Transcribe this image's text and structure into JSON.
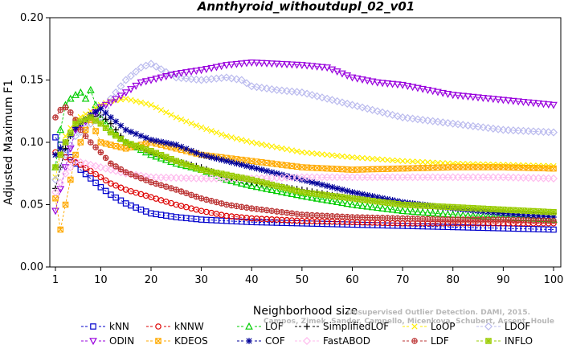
{
  "chart_data": {
    "type": "line",
    "title": "Annthyroid_withoutdupl_02_v01",
    "xlabel": "Neighborhood size",
    "ylabel": "Adjusted Maximum F1",
    "xlim": [
      1,
      100
    ],
    "ylim": [
      0,
      0.2
    ],
    "xticks": [
      1,
      10,
      20,
      30,
      40,
      50,
      60,
      70,
      80,
      90,
      100
    ],
    "yticks": [
      0.0,
      0.05,
      0.1,
      0.15,
      0.2
    ],
    "ytick_labels": [
      "0.00",
      "0.05",
      "0.10",
      "0.15",
      "0.20"
    ],
    "grid": false,
    "legend_position": "bottom",
    "watermark": [
      "Unsupervised Outlier Detection. DAMI, 2015.",
      "Campos, Zimek, Sander, Campello, Micenkova, Schubert, Assent, Houle"
    ],
    "series": [
      {
        "name": "kNN",
        "color": "#0000cc",
        "marker": "square",
        "points": [
          [
            1,
            0.104
          ],
          [
            2,
            0.098
          ],
          [
            3,
            0.092
          ],
          [
            4,
            0.088
          ],
          [
            5,
            0.083
          ],
          [
            6,
            0.078
          ],
          [
            8,
            0.071
          ],
          [
            10,
            0.064
          ],
          [
            12,
            0.058
          ],
          [
            15,
            0.051
          ],
          [
            18,
            0.046
          ],
          [
            20,
            0.043
          ],
          [
            25,
            0.04
          ],
          [
            30,
            0.038
          ],
          [
            40,
            0.036
          ],
          [
            50,
            0.035
          ],
          [
            60,
            0.034
          ],
          [
            70,
            0.033
          ],
          [
            80,
            0.032
          ],
          [
            90,
            0.031
          ],
          [
            100,
            0.03
          ]
        ]
      },
      {
        "name": "kNNW",
        "color": "#dd0000",
        "marker": "circle",
        "points": [
          [
            1,
            0.092
          ],
          [
            2,
            0.09
          ],
          [
            3,
            0.088
          ],
          [
            4,
            0.086
          ],
          [
            6,
            0.082
          ],
          [
            8,
            0.077
          ],
          [
            10,
            0.072
          ],
          [
            12,
            0.067
          ],
          [
            15,
            0.062
          ],
          [
            20,
            0.056
          ],
          [
            25,
            0.05
          ],
          [
            30,
            0.045
          ],
          [
            35,
            0.041
          ],
          [
            40,
            0.039
          ],
          [
            50,
            0.037
          ],
          [
            60,
            0.036
          ],
          [
            70,
            0.035
          ],
          [
            80,
            0.035
          ],
          [
            90,
            0.035
          ],
          [
            100,
            0.035
          ]
        ]
      },
      {
        "name": "LOF",
        "color": "#00cc00",
        "marker": "triangle-up",
        "points": [
          [
            1,
            0.08
          ],
          [
            2,
            0.11
          ],
          [
            3,
            0.13
          ],
          [
            4,
            0.135
          ],
          [
            5,
            0.138
          ],
          [
            6,
            0.14
          ],
          [
            7,
            0.135
          ],
          [
            8,
            0.142
          ],
          [
            9,
            0.13
          ],
          [
            10,
            0.12
          ],
          [
            12,
            0.11
          ],
          [
            15,
            0.1
          ],
          [
            20,
            0.09
          ],
          [
            25,
            0.083
          ],
          [
            30,
            0.078
          ],
          [
            35,
            0.07
          ],
          [
            40,
            0.065
          ],
          [
            50,
            0.057
          ],
          [
            60,
            0.05
          ],
          [
            70,
            0.045
          ],
          [
            80,
            0.042
          ],
          [
            90,
            0.04
          ],
          [
            100,
            0.038
          ]
        ]
      },
      {
        "name": "SimplifiedLOF",
        "color": "#000000",
        "marker": "plus",
        "points": [
          [
            1,
            0.063
          ],
          [
            2,
            0.08
          ],
          [
            3,
            0.095
          ],
          [
            4,
            0.105
          ],
          [
            5,
            0.11
          ],
          [
            6,
            0.115
          ],
          [
            7,
            0.118
          ],
          [
            8,
            0.12
          ],
          [
            10,
            0.122
          ],
          [
            12,
            0.115
          ],
          [
            15,
            0.1
          ],
          [
            20,
            0.092
          ],
          [
            25,
            0.085
          ],
          [
            30,
            0.08
          ],
          [
            35,
            0.072
          ],
          [
            40,
            0.068
          ],
          [
            50,
            0.062
          ],
          [
            60,
            0.055
          ],
          [
            70,
            0.05
          ],
          [
            80,
            0.047
          ],
          [
            90,
            0.045
          ],
          [
            100,
            0.043
          ]
        ]
      },
      {
        "name": "LoOP",
        "color": "#ffee00",
        "marker": "x",
        "points": [
          [
            1,
            0.072
          ],
          [
            2,
            0.09
          ],
          [
            3,
            0.105
          ],
          [
            5,
            0.118
          ],
          [
            8,
            0.125
          ],
          [
            10,
            0.13
          ],
          [
            12,
            0.133
          ],
          [
            15,
            0.135
          ],
          [
            18,
            0.132
          ],
          [
            20,
            0.13
          ],
          [
            25,
            0.12
          ],
          [
            30,
            0.112
          ],
          [
            35,
            0.105
          ],
          [
            40,
            0.1
          ],
          [
            50,
            0.092
          ],
          [
            60,
            0.088
          ],
          [
            70,
            0.085
          ],
          [
            80,
            0.083
          ],
          [
            90,
            0.082
          ],
          [
            100,
            0.081
          ]
        ]
      },
      {
        "name": "LDOF",
        "color": "#bbbbee",
        "marker": "diamond",
        "points": [
          [
            1,
            0.07
          ],
          [
            3,
            0.09
          ],
          [
            5,
            0.105
          ],
          [
            8,
            0.115
          ],
          [
            10,
            0.12
          ],
          [
            12,
            0.135
          ],
          [
            15,
            0.15
          ],
          [
            18,
            0.16
          ],
          [
            20,
            0.163
          ],
          [
            25,
            0.152
          ],
          [
            30,
            0.15
          ],
          [
            35,
            0.152
          ],
          [
            38,
            0.15
          ],
          [
            40,
            0.145
          ],
          [
            45,
            0.142
          ],
          [
            50,
            0.14
          ],
          [
            55,
            0.135
          ],
          [
            60,
            0.13
          ],
          [
            70,
            0.12
          ],
          [
            80,
            0.115
          ],
          [
            90,
            0.11
          ],
          [
            100,
            0.108
          ]
        ]
      },
      {
        "name": "ODIN",
        "color": "#9900dd",
        "marker": "triangle-down",
        "points": [
          [
            1,
            0.045
          ],
          [
            3,
            0.08
          ],
          [
            5,
            0.11
          ],
          [
            8,
            0.12
          ],
          [
            10,
            0.128
          ],
          [
            12,
            0.132
          ],
          [
            15,
            0.14
          ],
          [
            18,
            0.148
          ],
          [
            20,
            0.15
          ],
          [
            25,
            0.155
          ],
          [
            30,
            0.158
          ],
          [
            35,
            0.162
          ],
          [
            40,
            0.164
          ],
          [
            45,
            0.163
          ],
          [
            50,
            0.162
          ],
          [
            55,
            0.16
          ],
          [
            60,
            0.152
          ],
          [
            65,
            0.148
          ],
          [
            70,
            0.146
          ],
          [
            75,
            0.142
          ],
          [
            80,
            0.138
          ],
          [
            85,
            0.136
          ],
          [
            90,
            0.134
          ],
          [
            95,
            0.132
          ],
          [
            100,
            0.13
          ]
        ]
      },
      {
        "name": "KDEOS",
        "color": "#ffaa00",
        "marker": "square-x",
        "points": [
          [
            1,
            0.055
          ],
          [
            2,
            0.03
          ],
          [
            3,
            0.05
          ],
          [
            4,
            0.07
          ],
          [
            5,
            0.09
          ],
          [
            6,
            0.1
          ],
          [
            7,
            0.11
          ],
          [
            8,
            0.118
          ],
          [
            10,
            0.1
          ],
          [
            15,
            0.095
          ],
          [
            20,
            0.1
          ],
          [
            25,
            0.095
          ],
          [
            30,
            0.09
          ],
          [
            40,
            0.085
          ],
          [
            50,
            0.08
          ],
          [
            60,
            0.078
          ],
          [
            70,
            0.079
          ],
          [
            80,
            0.08
          ],
          [
            90,
            0.08
          ],
          [
            100,
            0.079
          ]
        ]
      },
      {
        "name": "COF",
        "color": "#000099",
        "marker": "star",
        "points": [
          [
            1,
            0.09
          ],
          [
            3,
            0.1
          ],
          [
            5,
            0.112
          ],
          [
            8,
            0.122
          ],
          [
            10,
            0.127
          ],
          [
            12,
            0.12
          ],
          [
            15,
            0.11
          ],
          [
            20,
            0.102
          ],
          [
            25,
            0.098
          ],
          [
            30,
            0.09
          ],
          [
            35,
            0.085
          ],
          [
            40,
            0.08
          ],
          [
            45,
            0.075
          ],
          [
            50,
            0.07
          ],
          [
            55,
            0.065
          ],
          [
            60,
            0.06
          ],
          [
            70,
            0.052
          ],
          [
            80,
            0.047
          ],
          [
            90,
            0.043
          ],
          [
            100,
            0.04
          ]
        ]
      },
      {
        "name": "FastABOD",
        "color": "#ffbbee",
        "marker": "diamond",
        "points": [
          [
            1,
            0.06
          ],
          [
            3,
            0.075
          ],
          [
            5,
            0.085
          ],
          [
            10,
            0.08
          ],
          [
            15,
            0.075
          ],
          [
            20,
            0.072
          ],
          [
            30,
            0.071
          ],
          [
            40,
            0.071
          ],
          [
            50,
            0.072
          ],
          [
            60,
            0.072
          ],
          [
            70,
            0.072
          ],
          [
            80,
            0.072
          ],
          [
            90,
            0.072
          ],
          [
            100,
            0.071
          ]
        ]
      },
      {
        "name": "LDF",
        "color": "#bb3333",
        "marker": "circle-plus",
        "points": [
          [
            1,
            0.12
          ],
          [
            2,
            0.126
          ],
          [
            3,
            0.128
          ],
          [
            4,
            0.124
          ],
          [
            5,
            0.118
          ],
          [
            6,
            0.11
          ],
          [
            8,
            0.1
          ],
          [
            10,
            0.092
          ],
          [
            12,
            0.083
          ],
          [
            15,
            0.076
          ],
          [
            20,
            0.068
          ],
          [
            25,
            0.062
          ],
          [
            30,
            0.055
          ],
          [
            35,
            0.05
          ],
          [
            40,
            0.047
          ],
          [
            50,
            0.042
          ],
          [
            60,
            0.04
          ],
          [
            70,
            0.039
          ],
          [
            80,
            0.038
          ],
          [
            90,
            0.038
          ],
          [
            100,
            0.037
          ]
        ]
      },
      {
        "name": "INFLO",
        "color": "#99cc00",
        "marker": "square-star",
        "points": [
          [
            1,
            0.08
          ],
          [
            3,
            0.1
          ],
          [
            5,
            0.115
          ],
          [
            8,
            0.12
          ],
          [
            10,
            0.115
          ],
          [
            12,
            0.108
          ],
          [
            15,
            0.1
          ],
          [
            20,
            0.093
          ],
          [
            25,
            0.085
          ],
          [
            30,
            0.078
          ],
          [
            40,
            0.07
          ],
          [
            50,
            0.06
          ],
          [
            60,
            0.055
          ],
          [
            70,
            0.05
          ],
          [
            80,
            0.048
          ],
          [
            90,
            0.046
          ],
          [
            100,
            0.044
          ]
        ]
      }
    ]
  }
}
